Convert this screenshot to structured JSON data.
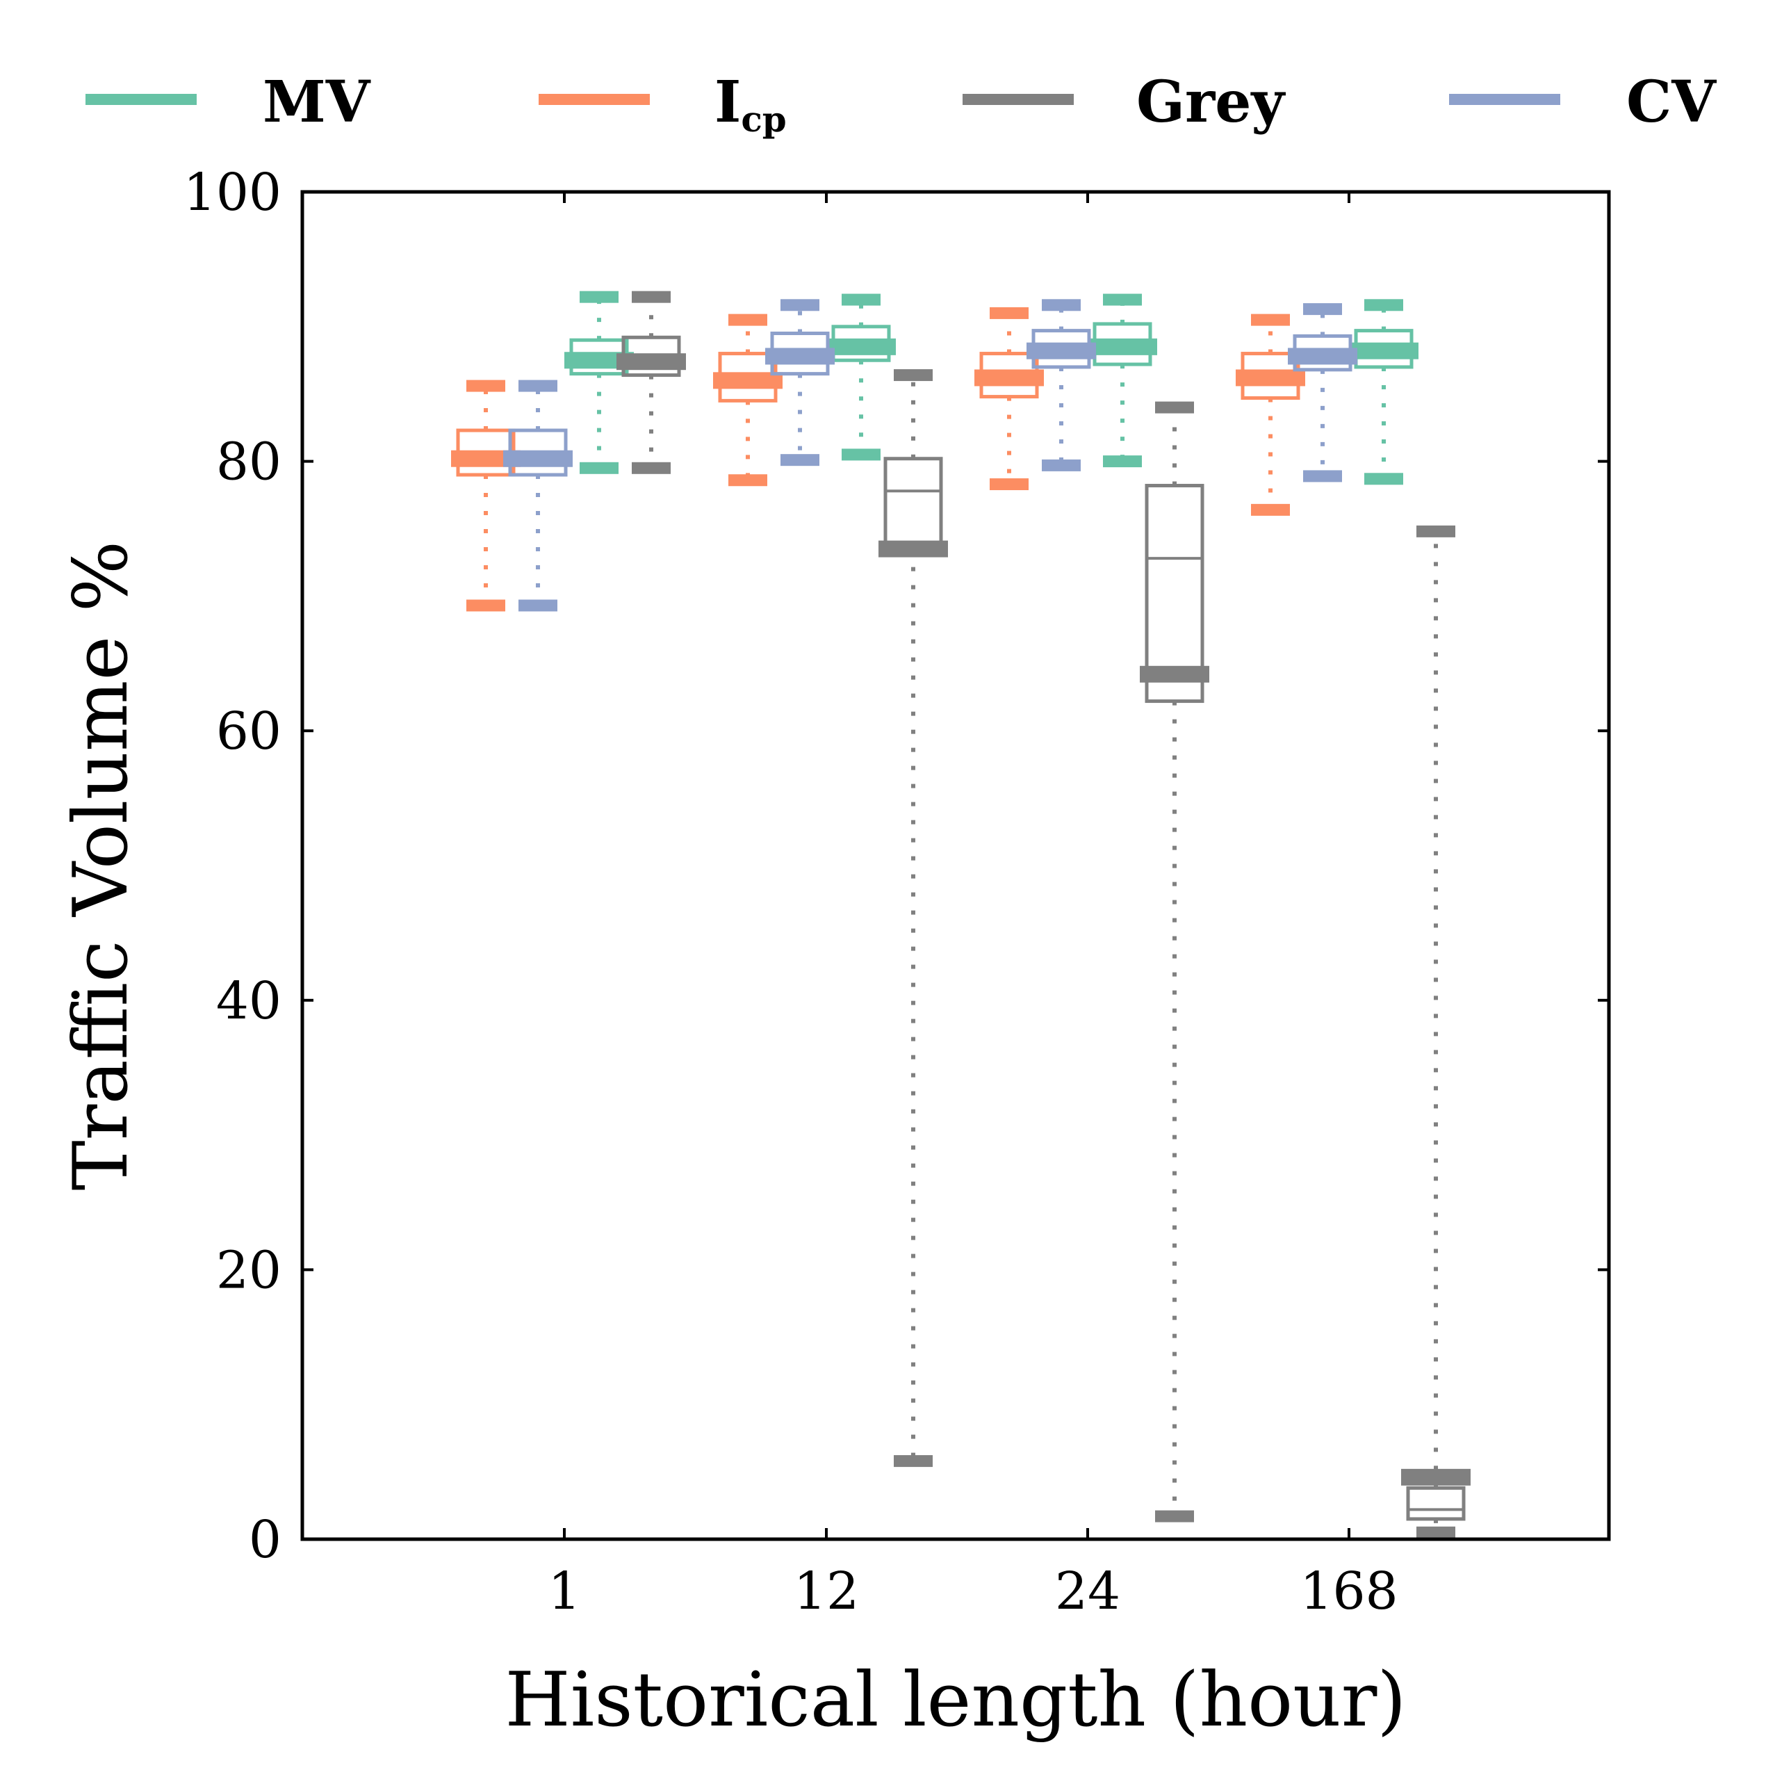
{
  "chart_data": {
    "type": "box",
    "xlabel": "Historical length (hour)",
    "ylabel": "Traffic Volume %",
    "ylim": [
      0,
      100
    ],
    "yticks": [
      0,
      20,
      40,
      60,
      80,
      100
    ],
    "categories": [
      "1",
      "12",
      "24",
      "168"
    ],
    "legend_position": "top",
    "grid": false,
    "series": [
      {
        "name": "MV",
        "color": "#66c2a5",
        "boxes": [
          {
            "category": "1",
            "whislo": 79.5,
            "q1": 86.5,
            "med": 87.5,
            "q3": 89.0,
            "whishi": 92.2
          },
          {
            "category": "12",
            "whislo": 80.5,
            "q1": 87.5,
            "med": 88.5,
            "q3": 90.0,
            "whishi": 92.0
          },
          {
            "category": "24",
            "whislo": 80.0,
            "q1": 87.2,
            "med": 88.5,
            "q3": 90.2,
            "whishi": 92.0
          },
          {
            "category": "168",
            "whislo": 78.7,
            "q1": 87.0,
            "med": 88.2,
            "q3": 89.7,
            "whishi": 91.6
          }
        ]
      },
      {
        "name": "Icp",
        "label_main": "I",
        "label_sub": "cp",
        "color": "#fc8d62",
        "boxes": [
          {
            "category": "1",
            "whislo": 69.3,
            "q1": 79.0,
            "med": 80.2,
            "q3": 82.3,
            "whishi": 85.6
          },
          {
            "category": "12",
            "whislo": 78.6,
            "q1": 84.5,
            "med": 86.0,
            "q3": 88.0,
            "whishi": 90.5
          },
          {
            "category": "24",
            "whislo": 78.3,
            "q1": 84.8,
            "med": 86.2,
            "q3": 88.0,
            "whishi": 91.0
          },
          {
            "category": "168",
            "whislo": 76.4,
            "q1": 84.7,
            "med": 86.2,
            "q3": 88.0,
            "whishi": 90.5
          }
        ]
      },
      {
        "name": "Grey",
        "color": "#808080",
        "boxes": [
          {
            "category": "1",
            "whislo": 79.5,
            "q1": 86.4,
            "med": 87.4,
            "q3": 89.2,
            "whishi": 92.2
          },
          {
            "category": "12",
            "whislo": 5.8,
            "q1": 73.5,
            "med": 77.8,
            "q3": 80.2,
            "whishi": 86.4,
            "mean": 73.5
          },
          {
            "category": "24",
            "whislo": 1.7,
            "q1": 62.2,
            "med": 72.8,
            "q3": 78.2,
            "whishi": 84.0,
            "mean": 64.2
          },
          {
            "category": "168",
            "whislo": 0.5,
            "q1": 1.5,
            "med": 2.2,
            "q3": 3.8,
            "whishi": 74.8,
            "mean": 4.6
          }
        ]
      },
      {
        "name": "CV",
        "color": "#8da0cb",
        "boxes": [
          {
            "category": "1",
            "whislo": 69.3,
            "q1": 79.0,
            "med": 80.2,
            "q3": 82.3,
            "whishi": 85.6
          },
          {
            "category": "12",
            "whislo": 80.1,
            "q1": 86.5,
            "med": 87.8,
            "q3": 89.5,
            "whishi": 91.6
          },
          {
            "category": "24",
            "whislo": 79.7,
            "q1": 87.0,
            "med": 88.2,
            "q3": 89.7,
            "whishi": 91.6
          },
          {
            "category": "168",
            "whislo": 78.9,
            "q1": 86.8,
            "med": 87.8,
            "q3": 89.3,
            "whishi": 91.3
          }
        ]
      }
    ]
  }
}
